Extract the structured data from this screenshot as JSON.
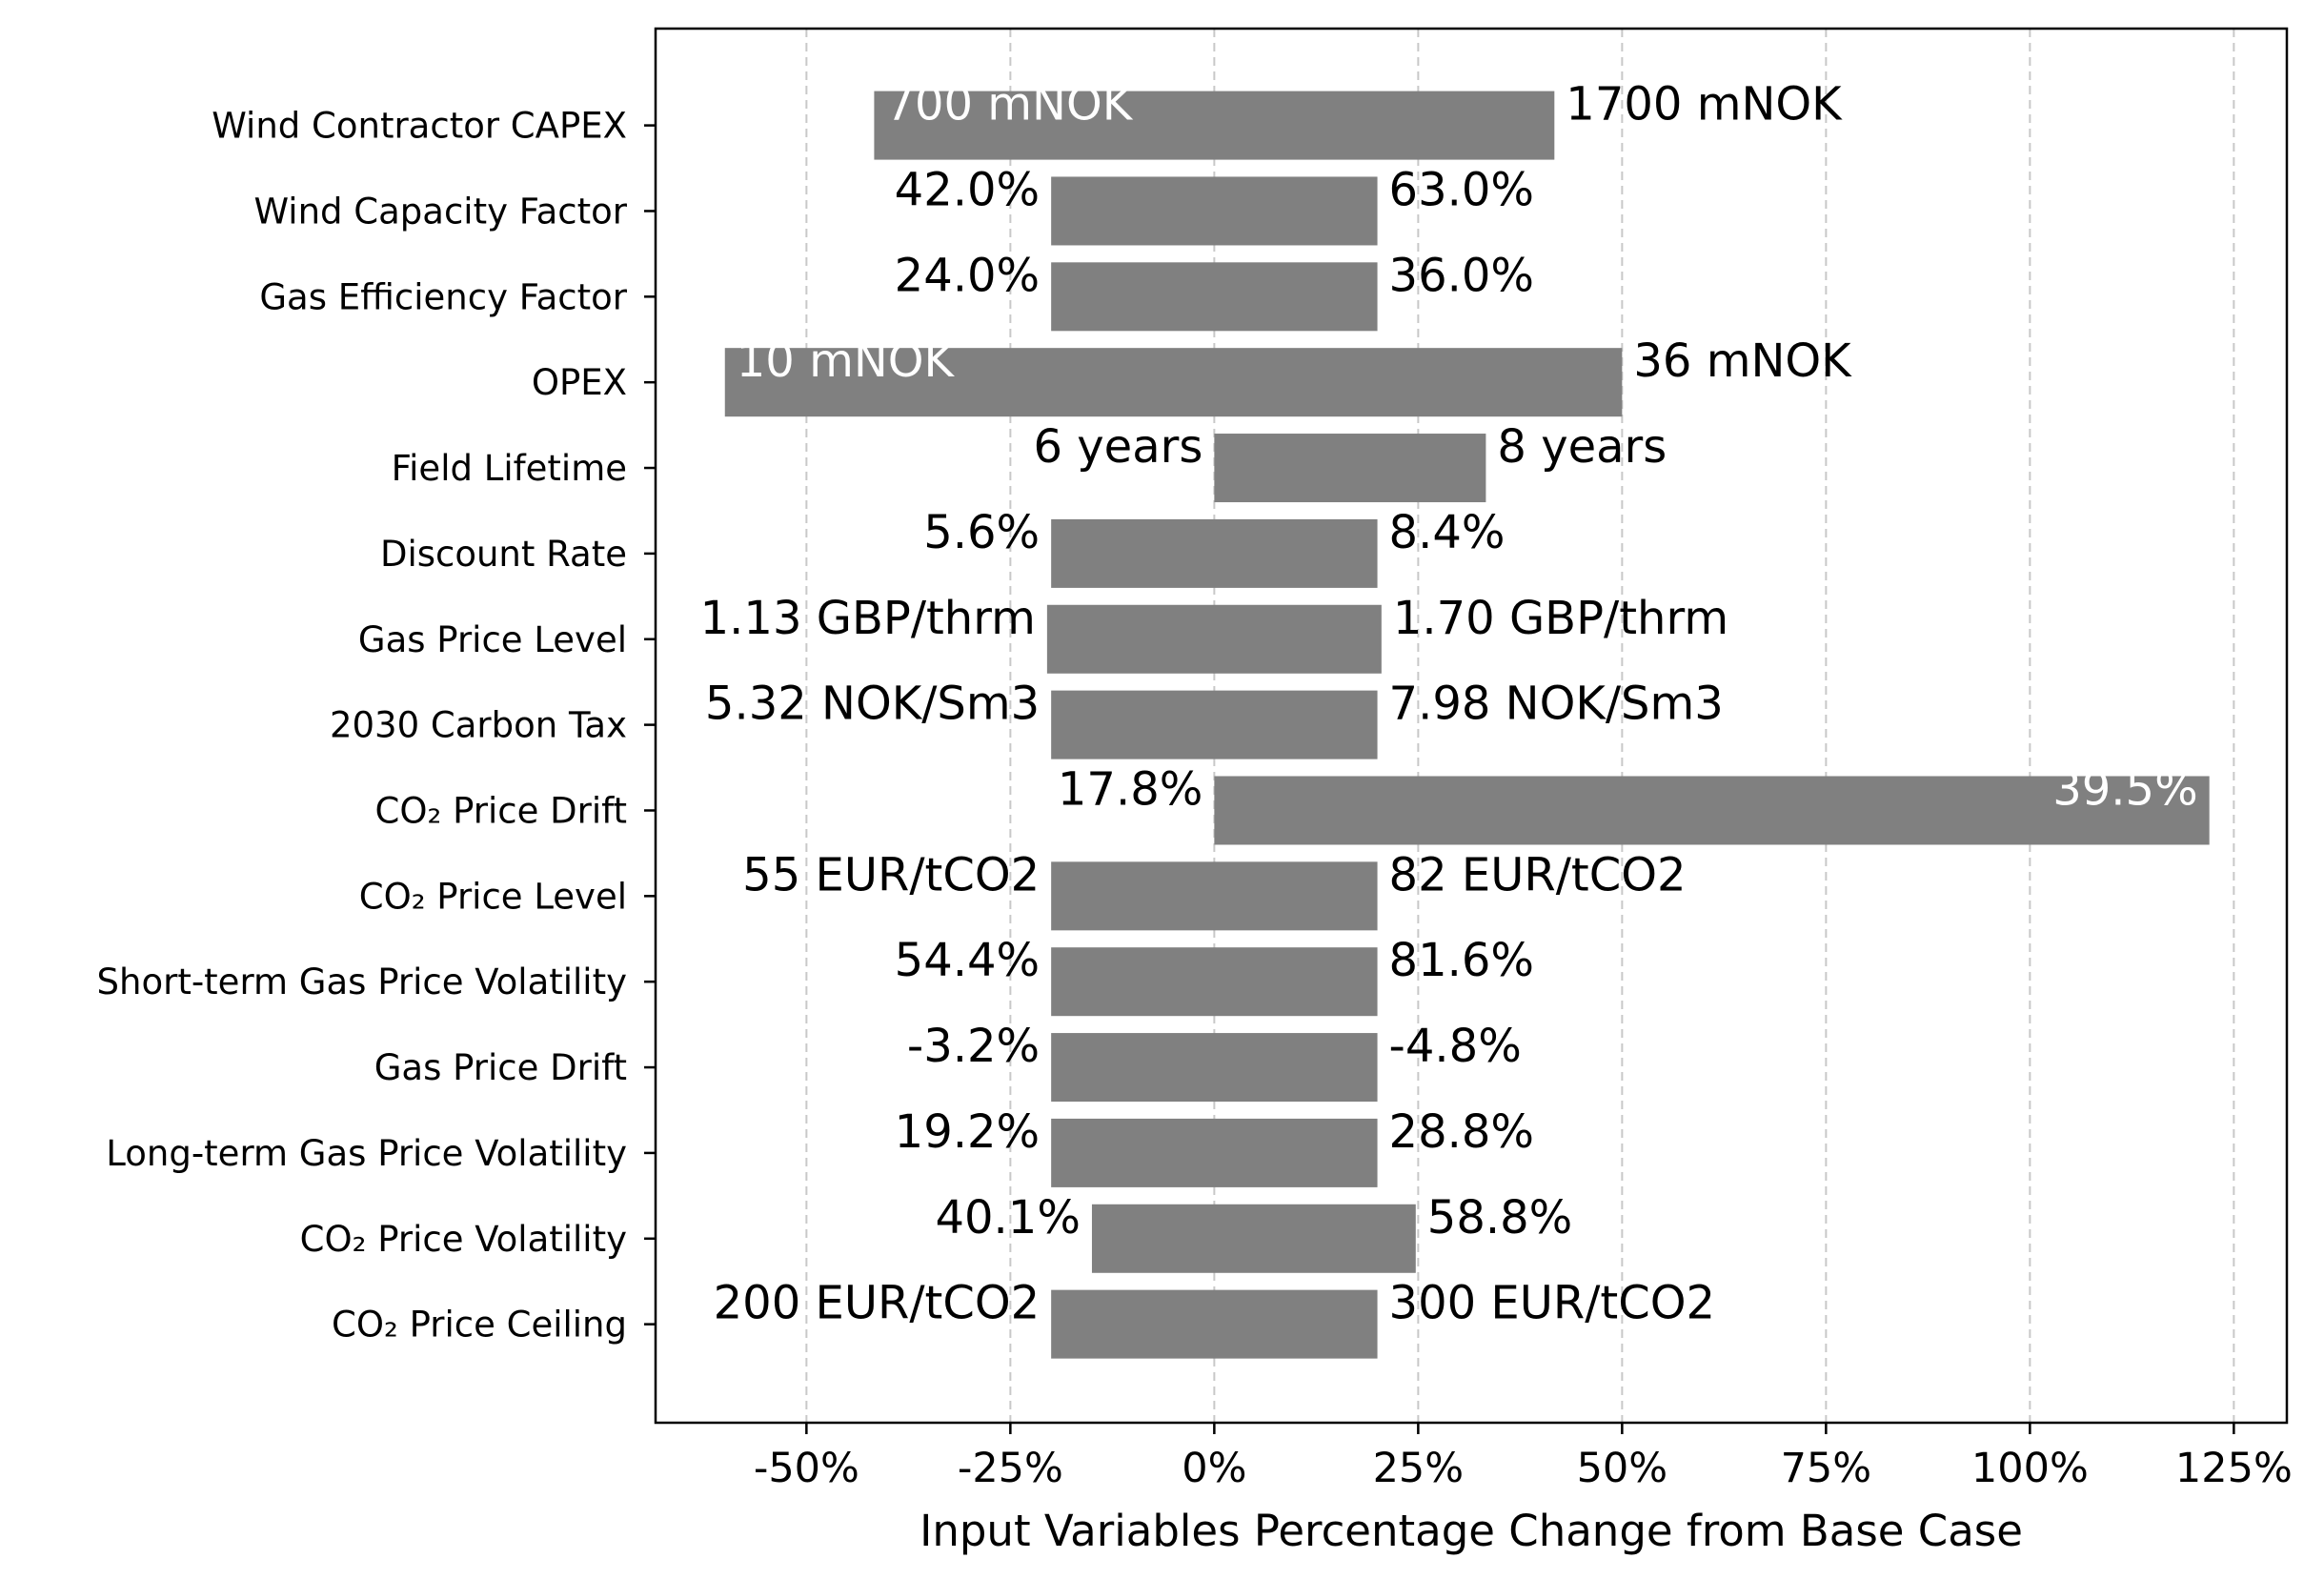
{
  "chart_data": {
    "type": "bar",
    "orientation": "horizontal",
    "style": "tornado",
    "xlabel": "Input Variables Percentage Change from Base Case",
    "ylabel": "",
    "title": "",
    "xlim": [
      -68.5,
      131.5
    ],
    "xticks": [
      -50,
      -25,
      0,
      25,
      50,
      75,
      100,
      125
    ],
    "xtick_labels": [
      "-50%",
      "-25%",
      "0%",
      "25%",
      "50%",
      "75%",
      "100%",
      "125%"
    ],
    "grid": {
      "x": true,
      "y": false,
      "style": "dashed"
    },
    "bar_color": "#808080",
    "label_color_inside": "#ffffff",
    "label_color_outside": "#000000",
    "categories": [
      "Wind Contractor CAPEX",
      "Wind Capacity Factor",
      "Gas Efficiency Factor",
      "OPEX",
      "Field Lifetime",
      "Discount Rate",
      "Gas Price Level",
      "2030 Carbon Tax",
      "CO₂ Price Drift",
      "CO₂ Price Level",
      "Short-term Gas Price Volatility",
      "Gas Price Drift",
      "Long-term Gas Price Volatility",
      "CO₂ Price Volatility",
      "CO₂ Price Ceiling"
    ],
    "low_values": [
      -41.7,
      -20,
      -20,
      -60,
      0,
      -20,
      -20.5,
      -20,
      0,
      -20,
      -20,
      -20,
      -20,
      -15,
      -20
    ],
    "high_values": [
      41.7,
      20,
      20,
      50,
      33.3,
      20,
      20.5,
      20,
      122,
      20,
      20,
      20,
      20,
      24.7,
      20
    ],
    "low_labels": [
      "700 mNOK",
      "42.0%",
      "24.0%",
      "10 mNOK",
      "6 years",
      "5.6%",
      "1.13 GBP/thrm",
      "5.32 NOK/Sm3",
      "17.8%",
      "55 EUR/tCO2",
      "54.4%",
      "-3.2%",
      "19.2%",
      "40.1%",
      "200 EUR/tCO2"
    ],
    "high_labels": [
      "1700 mNOK",
      "63.0%",
      "36.0%",
      "36 mNOK",
      "8 years",
      "8.4%",
      "1.70 GBP/thrm",
      "7.98 NOK/Sm3",
      "39.5%",
      "82 EUR/tCO2",
      "81.6%",
      "-4.8%",
      "28.8%",
      "58.8%",
      "300 EUR/tCO2"
    ],
    "low_label_inside": [
      true,
      false,
      false,
      true,
      false,
      false,
      false,
      false,
      false,
      false,
      false,
      false,
      false,
      false,
      false
    ],
    "high_label_inside": [
      false,
      false,
      false,
      false,
      false,
      false,
      false,
      false,
      true,
      false,
      false,
      false,
      false,
      false,
      false
    ]
  }
}
